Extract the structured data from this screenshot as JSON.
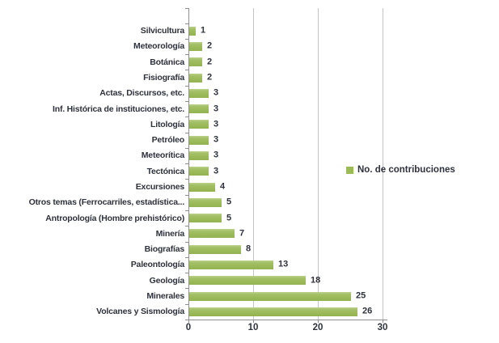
{
  "chart_data": {
    "type": "bar",
    "orientation": "horizontal",
    "categories": [
      "Silvicultura",
      "Meteorología",
      "Botánica",
      "Fisiografía",
      "Actas, Discursos, etc.",
      "Inf. Histórica de instituciones, etc.",
      "Litología",
      "Petróleo",
      "Meteorítica",
      "Tectónica",
      "Excursiones",
      "Otros temas (Ferrocarriles, estadística...",
      "Antropología (Hombre prehistórico)",
      "Minería",
      "Biografías",
      "Paleontología",
      "Geología",
      "Minerales",
      "Volcanes y Sismología"
    ],
    "series": [
      {
        "name": "No. de contribuciones",
        "values": [
          1,
          2,
          2,
          2,
          3,
          3,
          3,
          3,
          3,
          3,
          4,
          5,
          5,
          7,
          8,
          13,
          18,
          25,
          26
        ]
      }
    ],
    "data_labels": true,
    "xlim": [
      0,
      30
    ],
    "x_ticks": [
      0,
      10,
      20,
      30
    ],
    "grid": "vertical",
    "legend_position": "right"
  },
  "colors": {
    "bar": "#9BBB59",
    "gridline": "#C4C4C4",
    "axis": "#8F8F8F",
    "text": "#2E323C"
  }
}
